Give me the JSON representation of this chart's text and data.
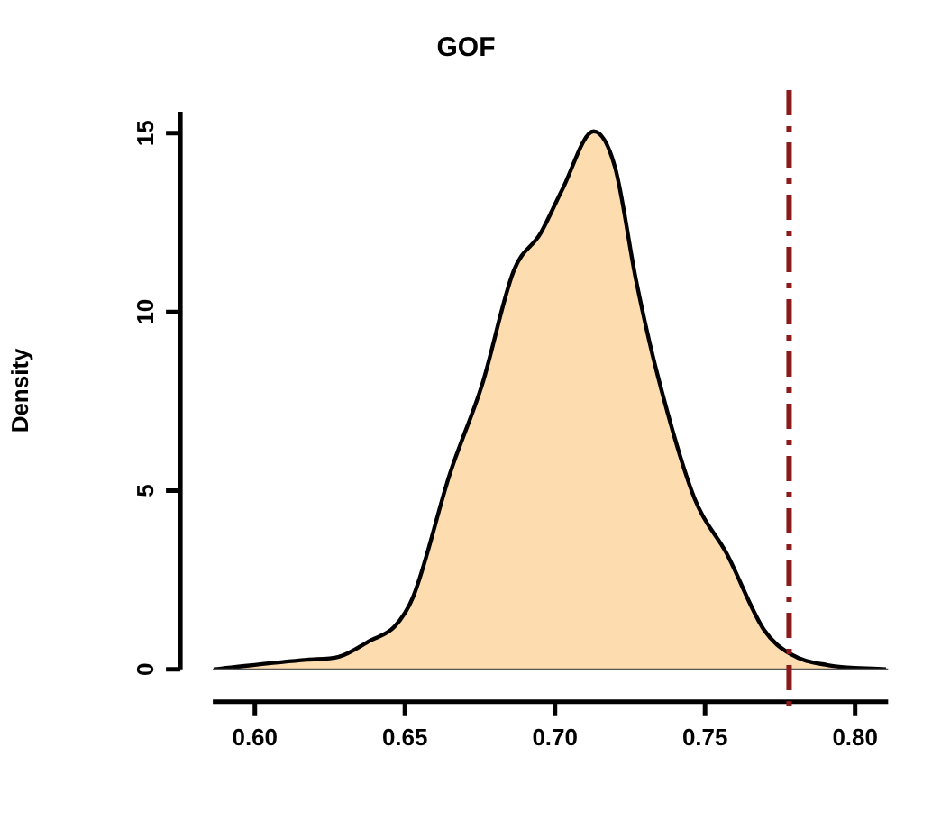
{
  "chart_data": {
    "type": "area",
    "title": "GOF",
    "ylabel": "Density",
    "series": [
      {
        "color": "#fddcb0",
        "x": [
          0.5863,
          0.6173,
          0.628,
          0.6386,
          0.6465,
          0.6527,
          0.6651,
          0.6757,
          0.6863,
          0.6952,
          0.7023,
          0.7129,
          0.72,
          0.7271,
          0.7341,
          0.7466,
          0.7572,
          0.7696,
          0.7784,
          0.7908,
          0.8103
        ],
        "values": [
          0,
          0.27,
          0.35,
          0.81,
          1.19,
          2.02,
          5.5,
          7.96,
          11.16,
          12.2,
          13.4,
          15.05,
          14.05,
          10.85,
          8.26,
          4.76,
          3.24,
          1.11,
          0.43,
          0.12,
          0
        ]
      }
    ],
    "xlim": [
      0.586,
      0.811
    ],
    "xticks": [
      {
        "value": 0.6,
        "label": "0.60"
      },
      {
        "value": 0.65,
        "label": "0.65"
      },
      {
        "value": 0.7,
        "label": "0.70"
      },
      {
        "value": 0.75,
        "label": "0.75"
      },
      {
        "value": 0.8,
        "label": "0.80"
      }
    ],
    "ylim": [
      0,
      15.6
    ],
    "yticks": [
      0,
      5,
      10,
      15
    ],
    "ref_lines": [
      {
        "axis": "x",
        "value": 0.778,
        "color": "#8b1a1a",
        "line_style": "dashdot"
      }
    ],
    "grid": false,
    "legend": false
  }
}
